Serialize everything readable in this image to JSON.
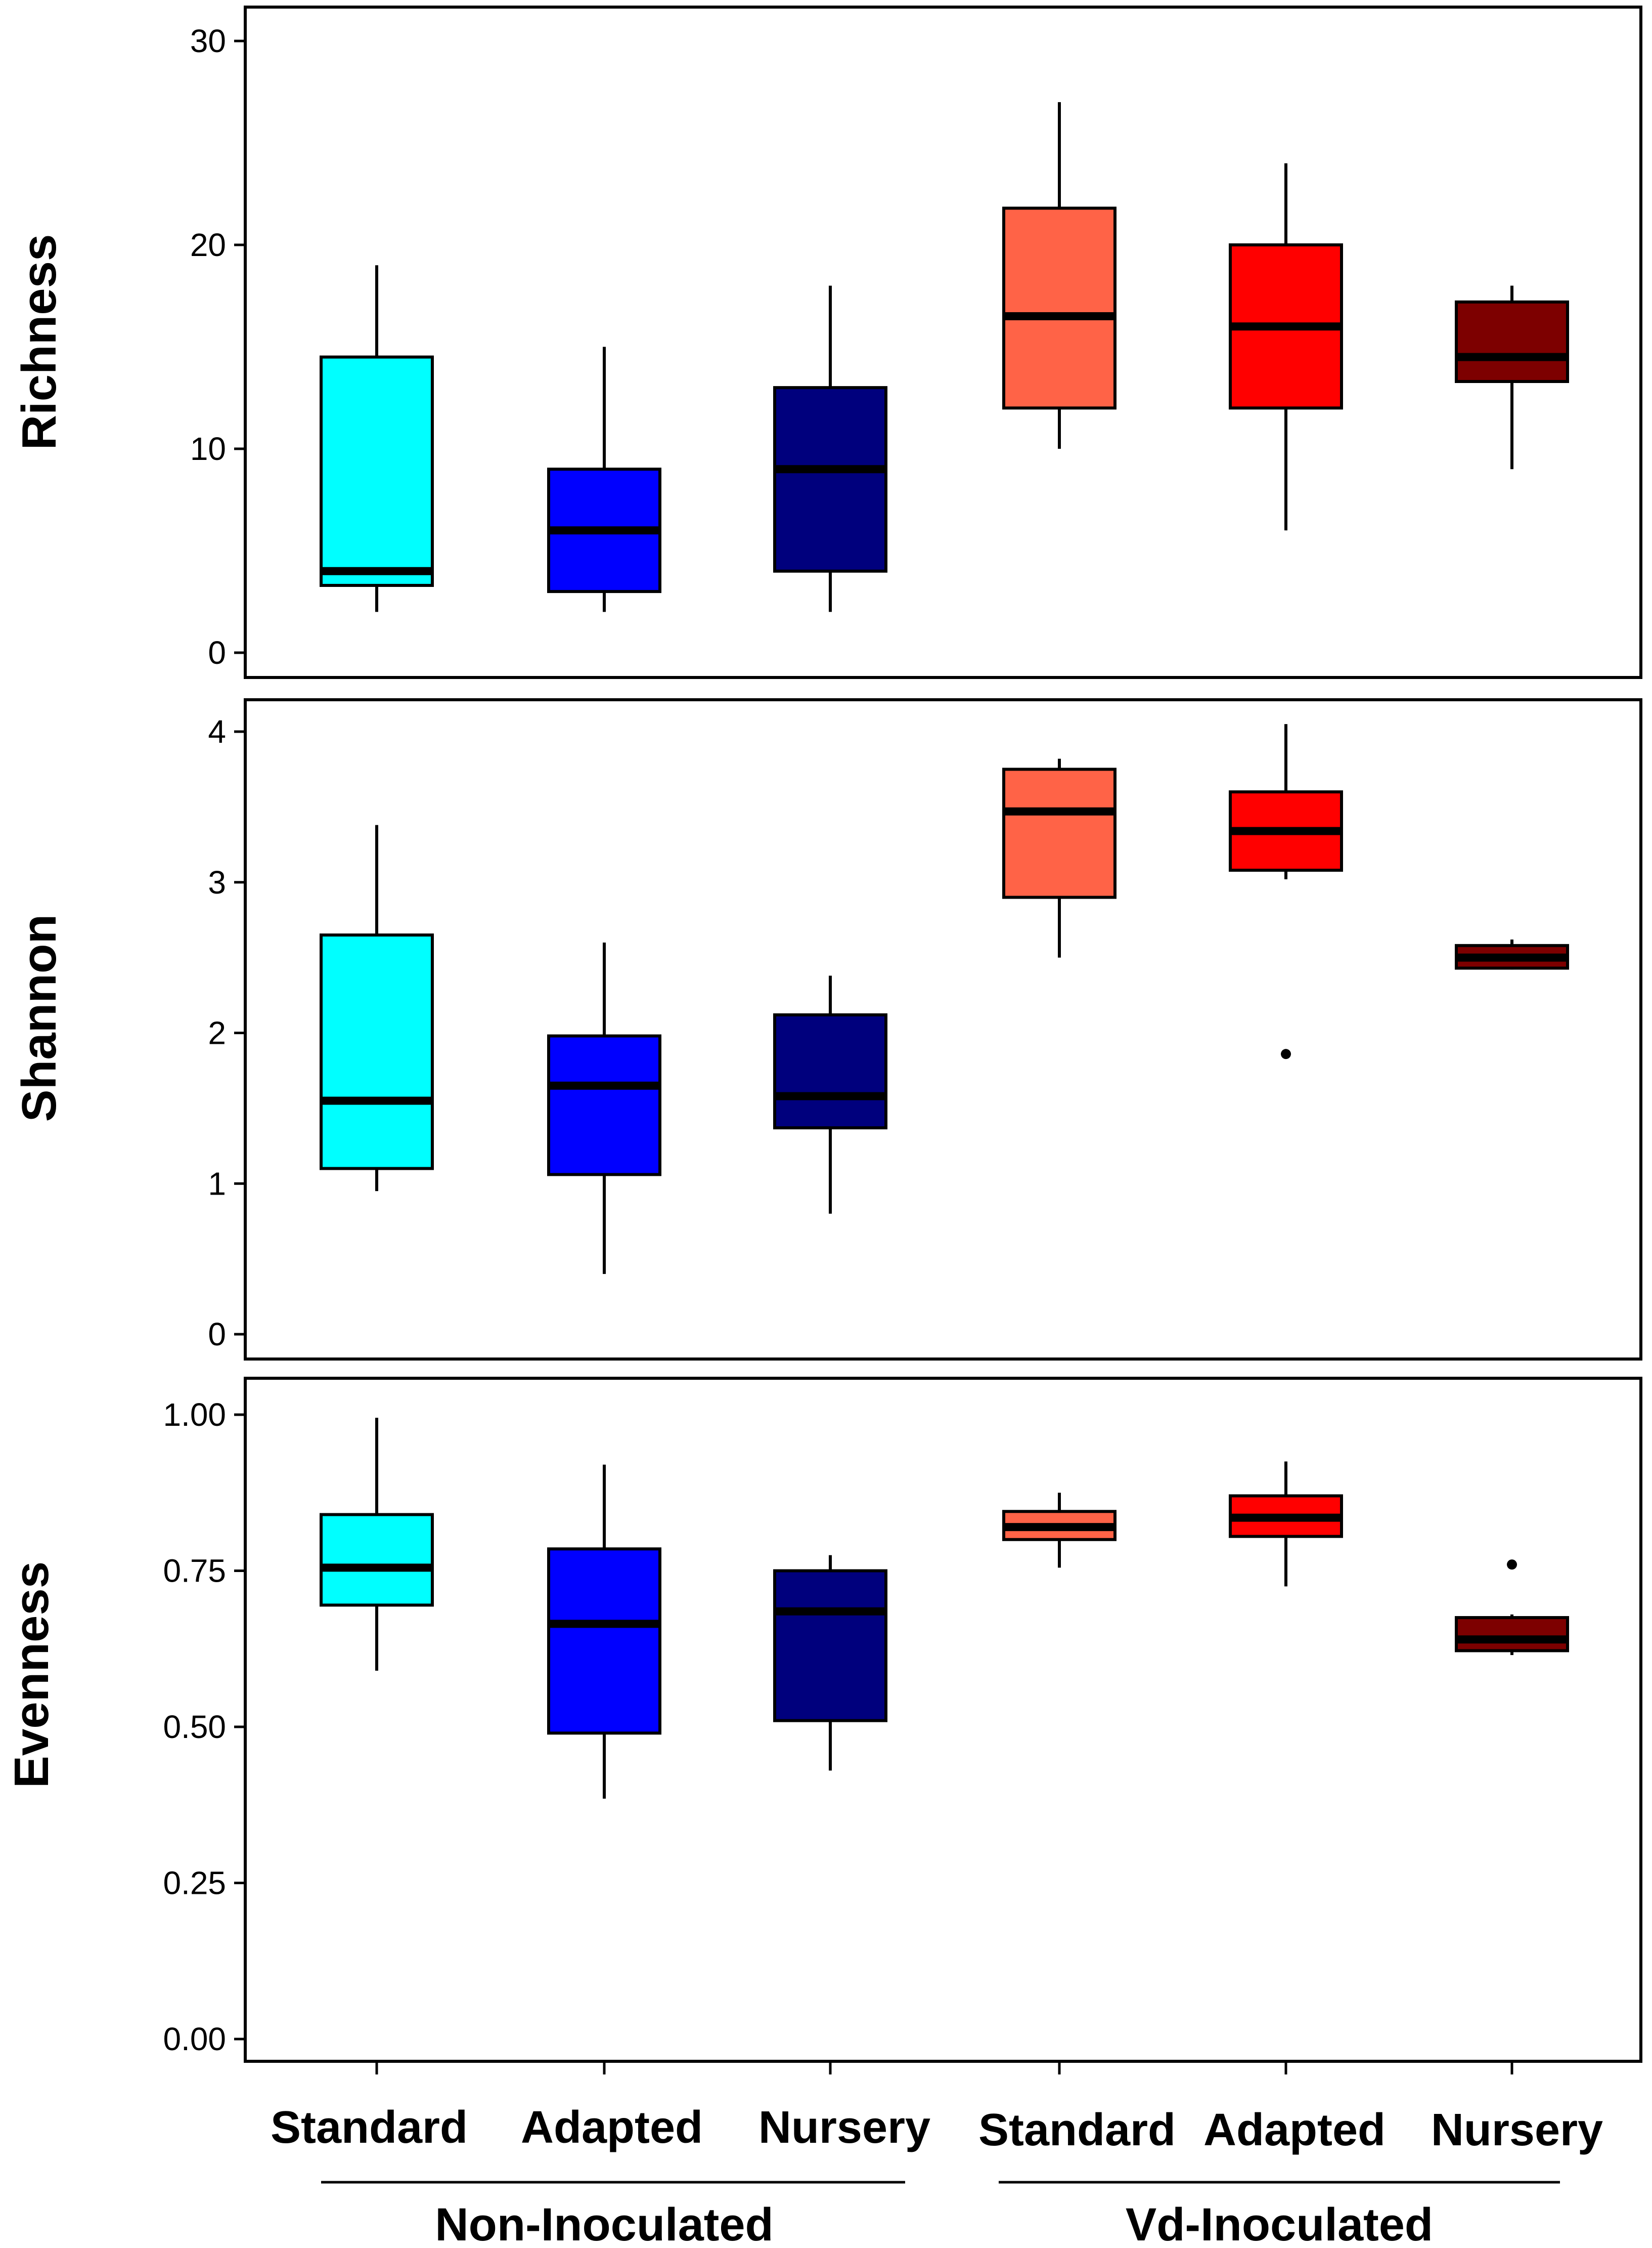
{
  "colors": {
    "non_standard": "#00FFFF",
    "non_adapted": "#0000FF",
    "non_nursery": "#00007D",
    "vd_standard": "#FF6347",
    "vd_adapted": "#FF0000",
    "vd_nursery": "#7D0000",
    "line": "#000000"
  },
  "chart_data": [
    {
      "type": "box",
      "ylabel": "Richness",
      "ylim": [
        0,
        30
      ],
      "yticks": [
        "0",
        "10",
        "20",
        "30"
      ],
      "boxes": [
        {
          "group": "Non-Inoculated",
          "category": "Standard",
          "color": "non_standard",
          "min": 2,
          "q1": 3.3,
          "median": 4,
          "q3": 14.5,
          "max": 19,
          "outliers": []
        },
        {
          "group": "Non-Inoculated",
          "category": "Adapted",
          "color": "non_adapted",
          "min": 2,
          "q1": 3,
          "median": 6,
          "q3": 9,
          "max": 15,
          "outliers": []
        },
        {
          "group": "Non-Inoculated",
          "category": "Nursery",
          "color": "non_nursery",
          "min": 2,
          "q1": 4,
          "median": 9,
          "q3": 13,
          "max": 18,
          "outliers": []
        },
        {
          "group": "Vd-Inoculated",
          "category": "Standard",
          "color": "vd_standard",
          "min": 10,
          "q1": 12,
          "median": 16.5,
          "q3": 21.8,
          "max": 27,
          "outliers": []
        },
        {
          "group": "Vd-Inoculated",
          "category": "Adapted",
          "color": "vd_adapted",
          "min": 6,
          "q1": 12,
          "median": 16,
          "q3": 20,
          "max": 24,
          "outliers": []
        },
        {
          "group": "Vd-Inoculated",
          "category": "Nursery",
          "color": "vd_nursery",
          "min": 9,
          "q1": 13.3,
          "median": 14.5,
          "q3": 17.2,
          "max": 18,
          "outliers": []
        }
      ]
    },
    {
      "type": "box",
      "ylabel": "Shannon",
      "ylim": [
        0,
        4
      ],
      "yticks": [
        "0",
        "1",
        "2",
        "3",
        "4"
      ],
      "boxes": [
        {
          "group": "Non-Inoculated",
          "category": "Standard",
          "color": "non_standard",
          "min": 0.95,
          "q1": 1.1,
          "median": 1.55,
          "q3": 2.65,
          "max": 3.38,
          "outliers": []
        },
        {
          "group": "Non-Inoculated",
          "category": "Adapted",
          "color": "non_adapted",
          "min": 0.4,
          "q1": 1.06,
          "median": 1.65,
          "q3": 1.98,
          "max": 2.6,
          "outliers": []
        },
        {
          "group": "Non-Inoculated",
          "category": "Nursery",
          "color": "non_nursery",
          "min": 0.8,
          "q1": 1.37,
          "median": 1.58,
          "q3": 2.12,
          "max": 2.38,
          "outliers": []
        },
        {
          "group": "Vd-Inoculated",
          "category": "Standard",
          "color": "vd_standard",
          "min": 2.5,
          "q1": 2.9,
          "median": 3.47,
          "q3": 3.75,
          "max": 3.82,
          "outliers": []
        },
        {
          "group": "Vd-Inoculated",
          "category": "Adapted",
          "color": "vd_adapted",
          "min": 3.02,
          "q1": 3.08,
          "median": 3.34,
          "q3": 3.6,
          "max": 4.05,
          "outliers": [
            1.86
          ]
        },
        {
          "group": "Vd-Inoculated",
          "category": "Nursery",
          "color": "vd_nursery",
          "min": 2.42,
          "q1": 2.43,
          "median": 2.5,
          "q3": 2.58,
          "max": 2.62,
          "outliers": []
        }
      ]
    },
    {
      "type": "box",
      "ylabel": "Evenness",
      "ylim": [
        0,
        1
      ],
      "yticks": [
        "0.00",
        "0.25",
        "0.50",
        "0.75",
        "1.00"
      ],
      "boxes": [
        {
          "group": "Non-Inoculated",
          "category": "Standard",
          "color": "non_standard",
          "min": 0.59,
          "q1": 0.695,
          "median": 0.755,
          "q3": 0.84,
          "max": 0.995,
          "outliers": []
        },
        {
          "group": "Non-Inoculated",
          "category": "Adapted",
          "color": "non_adapted",
          "min": 0.385,
          "q1": 0.49,
          "median": 0.665,
          "q3": 0.785,
          "max": 0.92,
          "outliers": []
        },
        {
          "group": "Non-Inoculated",
          "category": "Nursery",
          "color": "non_nursery",
          "min": 0.43,
          "q1": 0.51,
          "median": 0.685,
          "q3": 0.75,
          "max": 0.775,
          "outliers": []
        },
        {
          "group": "Vd-Inoculated",
          "category": "Standard",
          "color": "vd_standard",
          "min": 0.755,
          "q1": 0.8,
          "median": 0.82,
          "q3": 0.845,
          "max": 0.875,
          "outliers": []
        },
        {
          "group": "Vd-Inoculated",
          "category": "Adapted",
          "color": "vd_adapted",
          "min": 0.725,
          "q1": 0.805,
          "median": 0.835,
          "q3": 0.87,
          "max": 0.925,
          "outliers": []
        },
        {
          "group": "Vd-Inoculated",
          "category": "Nursery",
          "color": "vd_nursery",
          "min": 0.615,
          "q1": 0.622,
          "median": 0.64,
          "q3": 0.675,
          "max": 0.68,
          "outliers": [
            0.76
          ]
        }
      ]
    }
  ],
  "x_axis": {
    "categories": [
      "Standard",
      "Adapted",
      "Nursery",
      "Standard",
      "Adapted",
      "Nursery"
    ],
    "groups": [
      "Non-Inoculated",
      "Vd-Inoculated"
    ]
  }
}
